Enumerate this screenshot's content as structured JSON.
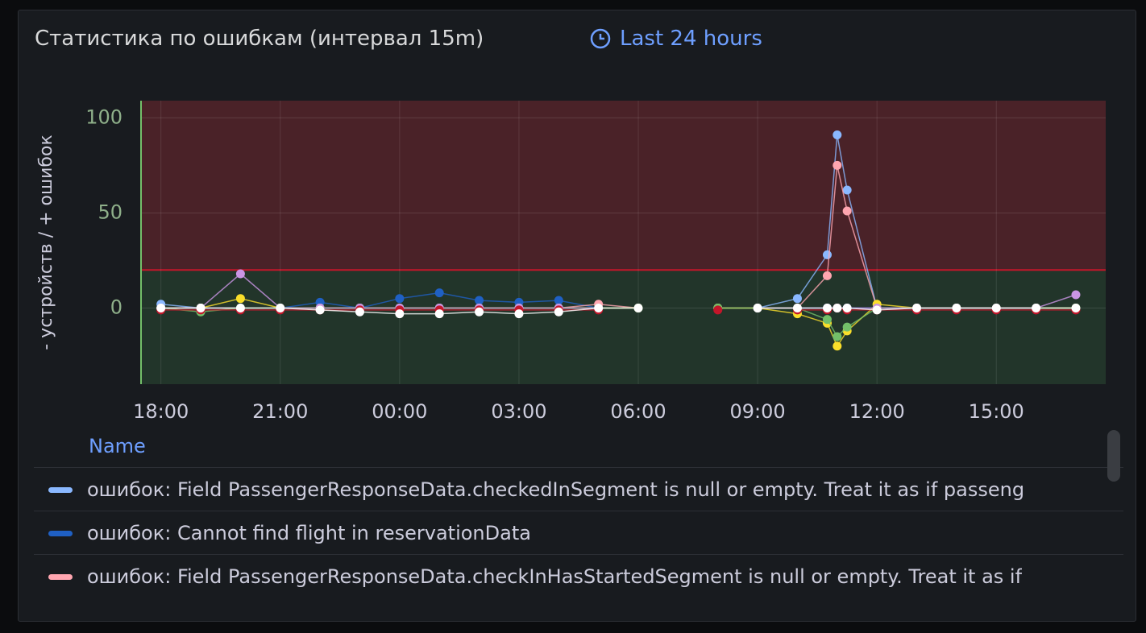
{
  "panel": {
    "title": "Статистика по ошибкам (интервал 15m)",
    "time_range": "Last 24 hours"
  },
  "chart_data": {
    "type": "line",
    "y_label": "- устройств / + ошибок",
    "x": [
      "18:00",
      "19:00",
      "20:00",
      "21:00",
      "22:00",
      "23:00",
      "00:00",
      "01:00",
      "02:00",
      "03:00",
      "04:00",
      "05:00",
      "06:00",
      "07:00",
      "08:00",
      "09:00",
      "10:00",
      "10:45",
      "11:00",
      "11:15",
      "12:00",
      "13:00",
      "14:00",
      "15:00",
      "16:00",
      "17:00"
    ],
    "xlim": [
      "17:30",
      "17:45"
    ],
    "xticks": [
      "18:00",
      "21:00",
      "00:00",
      "03:00",
      "06:00",
      "09:00",
      "12:00",
      "15:00"
    ],
    "ylim": [
      -40,
      109
    ],
    "yticks": [
      0,
      50,
      100
    ],
    "threshold": 20,
    "threshold_colors": [
      "#22352a",
      "#4a2228",
      "#c4162a"
    ],
    "grid": true,
    "series": [
      {
        "name": "ошибок: Field PassengerResponseData.checkedInSegment is null or empty. Treat it as if passeng",
        "color": "#8ab8ff",
        "values": [
          2,
          0,
          0,
          0,
          0,
          0,
          0,
          0,
          0,
          0,
          0,
          0,
          0,
          null,
          0,
          0,
          5,
          28,
          91,
          62,
          0,
          0,
          0,
          0,
          0,
          0
        ]
      },
      {
        "name": "ошибок: Cannot find flight in reservationData",
        "color": "#1f60c4",
        "values": [
          0,
          0,
          0,
          0,
          3,
          0,
          5,
          8,
          4,
          3,
          4,
          0,
          0,
          null,
          null,
          null,
          0,
          0,
          0,
          0,
          0,
          0,
          0,
          0,
          0,
          0
        ]
      },
      {
        "name": "ошибок: Field PassengerResponseData.checkInHasStartedSegment is null or empty. Treat it as if",
        "color": "#ffa6b0",
        "values": [
          0,
          0,
          0,
          0,
          0,
          0,
          0,
          0,
          0,
          0,
          0,
          2,
          0,
          null,
          0,
          0,
          0,
          17,
          75,
          51,
          0,
          0,
          0,
          0,
          0,
          0
        ]
      },
      {
        "color": "#fade2a",
        "values": [
          0,
          0,
          5,
          0,
          0,
          0,
          0,
          0,
          0,
          0,
          0,
          0,
          0,
          null,
          0,
          0,
          -3,
          -8,
          -20,
          -12,
          2,
          0,
          0,
          0,
          0,
          0
        ]
      },
      {
        "color": "#73bf69",
        "values": [
          0,
          -2,
          0,
          0,
          0,
          0,
          0,
          0,
          0,
          0,
          0,
          0,
          0,
          null,
          0,
          0,
          0,
          -6,
          -15,
          -10,
          0,
          0,
          0,
          0,
          0,
          0
        ]
      },
      {
        "color": "#ca95e5",
        "values": [
          0,
          0,
          18,
          0,
          0,
          0,
          0,
          0,
          0,
          0,
          0,
          0,
          null,
          null,
          null,
          0,
          0,
          0,
          0,
          0,
          0,
          0,
          0,
          0,
          0,
          7
        ]
      },
      {
        "color": "#c4162a",
        "values": [
          -1,
          -1,
          -1,
          -1,
          -1,
          -1,
          -1,
          -1,
          -1,
          -1,
          -1,
          -1,
          null,
          null,
          -1,
          null,
          -1,
          -1,
          0,
          -1,
          -1,
          -1,
          -1,
          -1,
          -1,
          -1
        ]
      },
      {
        "color": "#ffffff",
        "values": [
          0,
          0,
          0,
          0,
          -1,
          -2,
          -3,
          -3,
          -2,
          -3,
          -2,
          0,
          0,
          null,
          null,
          0,
          0,
          0,
          0,
          0,
          -1,
          0,
          0,
          0,
          0,
          0
        ]
      }
    ]
  },
  "legend": {
    "header": "Name"
  }
}
